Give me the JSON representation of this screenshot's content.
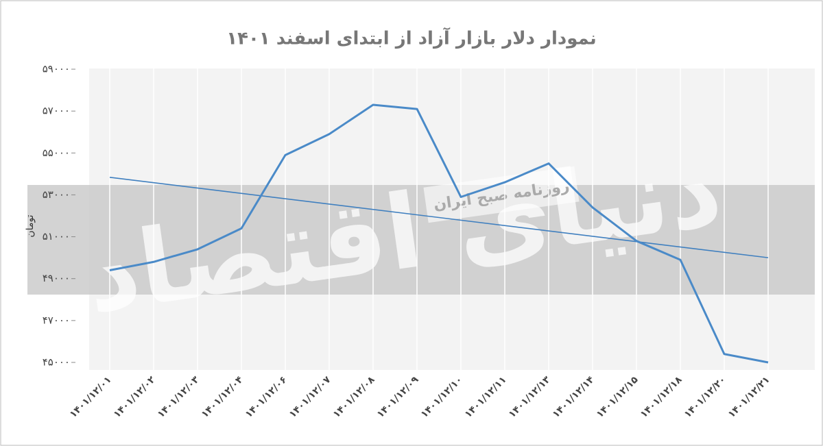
{
  "chart_data": {
    "type": "line",
    "title": "نمودار دلار بازار آزاد از ابتدای اسفند ۱۴۰۱",
    "y_label": "تومان",
    "annotations": [
      "دنیای اقتصاد",
      "روزنامه صبح ایران"
    ],
    "categories": [
      "۱۴۰۱/۱۲/۰۱",
      "۱۴۰۱/۱۲/۰۲",
      "۱۴۰۱/۱۲/۰۳",
      "۱۴۰۱/۱۲/۰۴",
      "۱۴۰۱/۱۲/۰۶",
      "۱۴۰۱/۱۲/۰۷",
      "۱۴۰۱/۱۲/۰۸",
      "۱۴۰۱/۱۲/۰۹",
      "۱۴۰۱/۱۲/۱۰",
      "۱۴۰۱/۱۲/۱۱",
      "۱۴۰۱/۱۲/۱۳",
      "۱۴۰۱/۱۲/۱۴",
      "۱۴۰۱/۱۲/۱۵",
      "۱۴۰۱/۱۲/۱۸",
      "۱۴۰۱/۱۲/۲۰",
      "۱۴۰۱/۱۲/۲۱"
    ],
    "values": [
      49400,
      49800,
      50400,
      51400,
      54900,
      55900,
      57300,
      57100,
      52900,
      53600,
      54500,
      52400,
      50800,
      49900,
      45400,
      45000
    ],
    "color": "#4a8ac8",
    "trendline": true,
    "trend_color": "#3f7fbf",
    "ylim": [
      45000,
      59000
    ],
    "yticks": [
      {
        "value": 45000,
        "label": "۴۵۰۰۰"
      },
      {
        "value": 47000,
        "label": "۴۷۰۰۰"
      },
      {
        "value": 49000,
        "label": "۴۹۰۰۰"
      },
      {
        "value": 51000,
        "label": "۵۱۰۰۰"
      },
      {
        "value": 53000,
        "label": "۵۳۰۰۰"
      },
      {
        "value": 55000,
        "label": "۵۵۰۰۰"
      },
      {
        "value": 57000,
        "label": "۵۷۰۰۰"
      },
      {
        "value": 59000,
        "label": "۵۹۰۰۰"
      }
    ],
    "grid": true
  }
}
